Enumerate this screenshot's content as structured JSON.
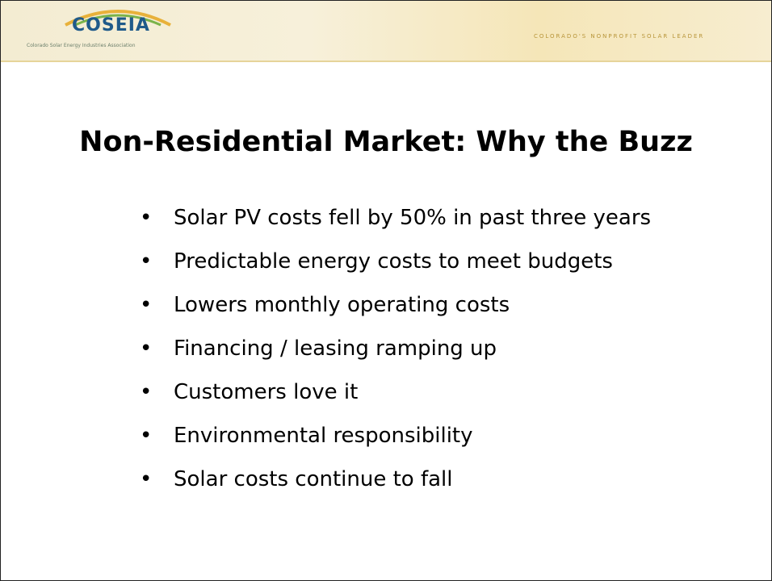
{
  "header": {
    "logo": "COSEIA",
    "logo_subtitle": "Colorado Solar Energy Industries Association",
    "tagline": "COLORADO'S NONPROFIT SOLAR LEADER"
  },
  "title": "Non-Residential Market: Why the Buzz",
  "bullets": [
    "Solar PV costs fell by 50% in past three years",
    "Predictable energy costs to meet budgets",
    "Lowers monthly operating costs",
    "Financing / leasing ramping up",
    "Customers love it",
    "Environmental responsibility",
    "Solar costs continue to fall"
  ]
}
